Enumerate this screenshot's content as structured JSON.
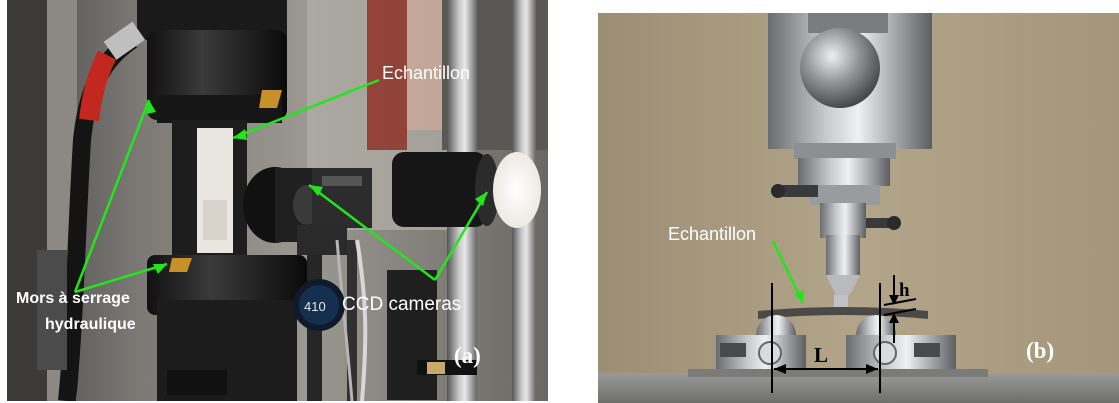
{
  "figure_a": {
    "panel_label": "(a)",
    "labels": {
      "specimen": "Echantillon",
      "grips_line1": "Mors à serrage",
      "grips_line2": "hydraulique",
      "cameras": "CCD cameras",
      "lens_marking": "410"
    },
    "colors": {
      "annotation_arrow": "#22e61c"
    }
  },
  "figure_b": {
    "panel_label": "(b)",
    "labels": {
      "specimen": "Echantillon",
      "thickness": "h",
      "span": "L"
    }
  }
}
